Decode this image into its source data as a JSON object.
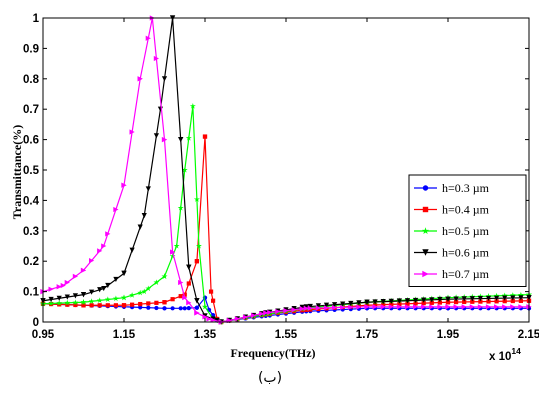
{
  "chart_data": {
    "type": "line",
    "xlabel": "Frequency(THz)",
    "ylabel": "Transmittance(%)",
    "x_exponent_label": "x 10",
    "x_exponent_power": "14",
    "caption": "(ب)",
    "xlim": [
      0.95,
      2.15
    ],
    "ylim": [
      0,
      1
    ],
    "xticks": [
      "0.95",
      "1.15",
      "1.35",
      "1.55",
      "1.75",
      "1.95",
      "2.15"
    ],
    "yticks": [
      "0",
      "0.1",
      "0.2",
      "0.3",
      "0.4",
      "0.5",
      "0.6",
      "0.7",
      "0.8",
      "0.9",
      "1"
    ],
    "grid": false,
    "legend_position": "lower-right",
    "series": [
      {
        "name": "h=0.3 µm",
        "color": "#0000ff",
        "marker": "dot",
        "points": [
          [
            0.95,
            0.06
          ],
          [
            1.05,
            0.055
          ],
          [
            1.15,
            0.05
          ],
          [
            1.25,
            0.045
          ],
          [
            1.3,
            0.045
          ],
          [
            1.33,
            0.047
          ],
          [
            1.35,
            0.08
          ],
          [
            1.36,
            0.04
          ],
          [
            1.38,
            0.005
          ],
          [
            1.39,
            0.0
          ],
          [
            1.41,
            0.005
          ],
          [
            1.5,
            0.02
          ],
          [
            1.6,
            0.035
          ],
          [
            1.75,
            0.045
          ],
          [
            1.95,
            0.045
          ],
          [
            2.15,
            0.045
          ]
        ]
      },
      {
        "name": "h=0.4 µm",
        "color": "#ff0000",
        "marker": "square",
        "points": [
          [
            0.95,
            0.06
          ],
          [
            1.05,
            0.055
          ],
          [
            1.15,
            0.055
          ],
          [
            1.25,
            0.065
          ],
          [
            1.3,
            0.09
          ],
          [
            1.33,
            0.2
          ],
          [
            1.35,
            0.61
          ],
          [
            1.365,
            0.1
          ],
          [
            1.38,
            0.01
          ],
          [
            1.39,
            0.0
          ],
          [
            1.41,
            0.005
          ],
          [
            1.5,
            0.025
          ],
          [
            1.6,
            0.04
          ],
          [
            1.75,
            0.055
          ],
          [
            1.95,
            0.065
          ],
          [
            2.15,
            0.07
          ]
        ]
      },
      {
        "name": "h=0.5 µm",
        "color": "#00ff00",
        "marker": "star",
        "points": [
          [
            0.95,
            0.06
          ],
          [
            1.05,
            0.065
          ],
          [
            1.15,
            0.08
          ],
          [
            1.2,
            0.1
          ],
          [
            1.25,
            0.15
          ],
          [
            1.28,
            0.25
          ],
          [
            1.3,
            0.5
          ],
          [
            1.32,
            0.71
          ],
          [
            1.335,
            0.25
          ],
          [
            1.35,
            0.05
          ],
          [
            1.37,
            0.01
          ],
          [
            1.39,
            0.0
          ],
          [
            1.41,
            0.005
          ],
          [
            1.5,
            0.025
          ],
          [
            1.6,
            0.045
          ],
          [
            1.75,
            0.065
          ],
          [
            1.95,
            0.08
          ],
          [
            2.15,
            0.09
          ]
        ]
      },
      {
        "name": "h=0.6 µm",
        "color": "#000000",
        "marker": "tri-down",
        "points": [
          [
            0.95,
            0.07
          ],
          [
            1.05,
            0.09
          ],
          [
            1.1,
            0.11
          ],
          [
            1.15,
            0.16
          ],
          [
            1.2,
            0.35
          ],
          [
            1.24,
            0.7
          ],
          [
            1.27,
            1.0
          ],
          [
            1.29,
            0.6
          ],
          [
            1.31,
            0.18
          ],
          [
            1.33,
            0.07
          ],
          [
            1.35,
            0.02
          ],
          [
            1.38,
            0.005
          ],
          [
            1.39,
            0.0
          ],
          [
            1.41,
            0.005
          ],
          [
            1.5,
            0.03
          ],
          [
            1.6,
            0.05
          ],
          [
            1.75,
            0.065
          ],
          [
            1.95,
            0.075
          ],
          [
            2.15,
            0.08
          ]
        ]
      },
      {
        "name": "h=0.7 µm",
        "color": "#ff00ff",
        "marker": "tri-right",
        "points": [
          [
            0.95,
            0.1
          ],
          [
            1.0,
            0.12
          ],
          [
            1.05,
            0.17
          ],
          [
            1.1,
            0.25
          ],
          [
            1.15,
            0.45
          ],
          [
            1.19,
            0.8
          ],
          [
            1.22,
            1.0
          ],
          [
            1.25,
            0.6
          ],
          [
            1.27,
            0.23
          ],
          [
            1.3,
            0.08
          ],
          [
            1.33,
            0.03
          ],
          [
            1.36,
            0.01
          ],
          [
            1.39,
            0.0
          ],
          [
            1.41,
            0.005
          ],
          [
            1.5,
            0.03
          ],
          [
            1.6,
            0.045
          ],
          [
            1.75,
            0.05
          ],
          [
            1.95,
            0.05
          ],
          [
            2.15,
            0.05
          ]
        ]
      }
    ]
  }
}
